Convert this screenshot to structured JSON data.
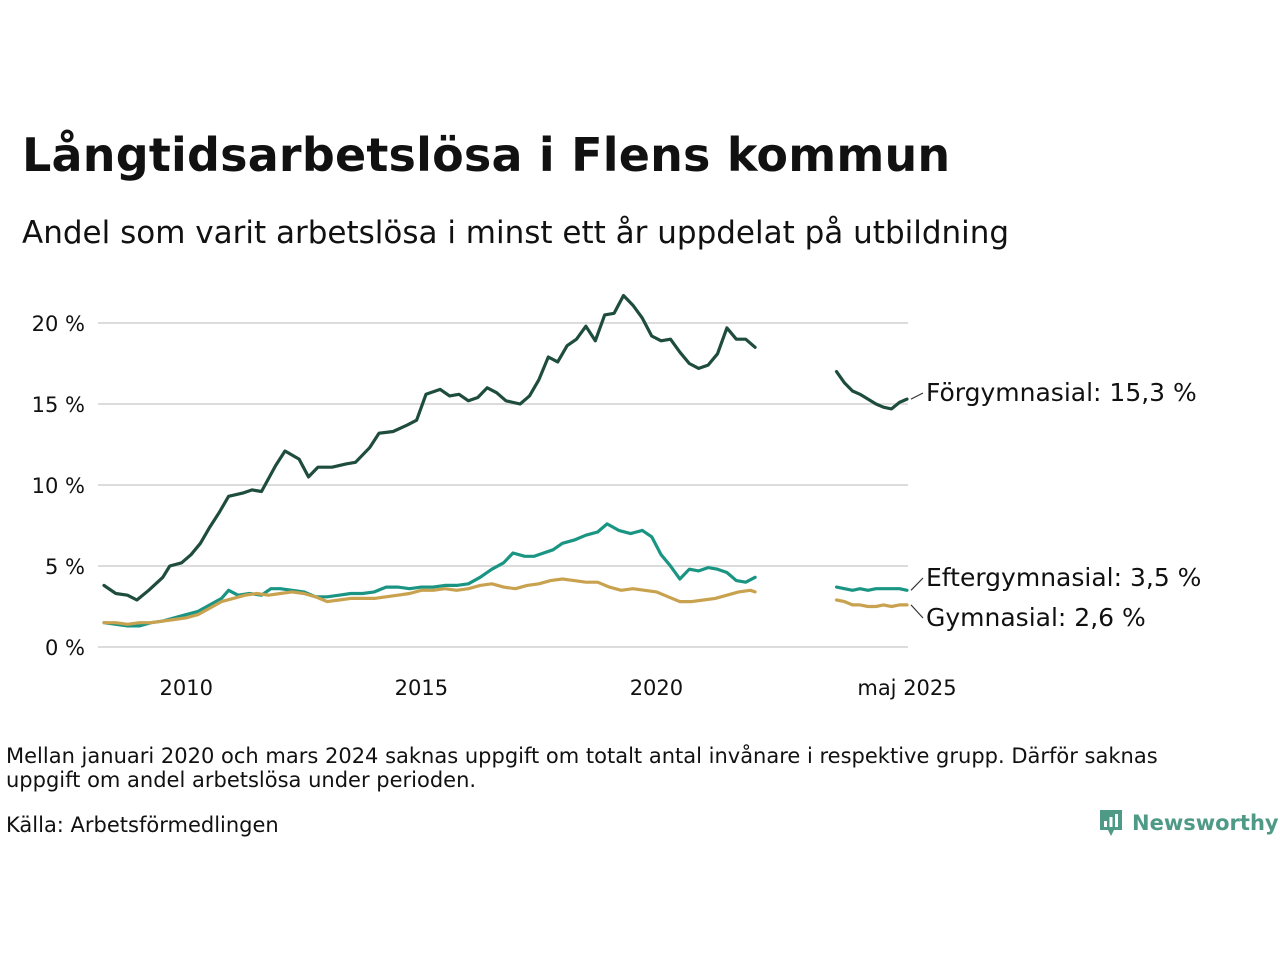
{
  "title": "Långtidsarbetslösa i Flens kommun",
  "subtitle": "Andel som varit arbetslösa i minst ett år uppdelat på utbildning",
  "note": "Mellan januari 2020 och mars 2024 saknas uppgift om totalt antal invånare i respektive grupp. Därför saknas uppgift om andel arbetslösa under perioden.",
  "source": "Källa: Arbetsförmedlingen",
  "brand": "Newsworthy",
  "chart_data": {
    "type": "line",
    "y_ticks": [
      0,
      5,
      10,
      15,
      20
    ],
    "y_tick_labels": [
      "0 %",
      "5 %",
      "10 %",
      "15 %",
      "20 %"
    ],
    "ylim": [
      0,
      22
    ],
    "x_ticks": [
      2010,
      2015,
      2020,
      2025.33
    ],
    "x_tick_labels": [
      "2010",
      "2015",
      "2020",
      "maj 2025"
    ],
    "xlim": [
      2008.25,
      2025.33
    ],
    "grid": true,
    "legend": "direct labels at right end of lines",
    "series": [
      {
        "name": "Förgymnasial",
        "end_label": "Förgymnasial: 15,3 %",
        "color": "#1f4d3d",
        "segments": [
          [
            [
              2008.25,
              3.8
            ],
            [
              2008.5,
              3.3
            ],
            [
              2008.75,
              3.2
            ],
            [
              2008.95,
              2.9
            ],
            [
              2009.2,
              3.5
            ],
            [
              2009.5,
              4.3
            ],
            [
              2009.65,
              5.0
            ],
            [
              2009.9,
              5.2
            ],
            [
              2010.1,
              5.7
            ],
            [
              2010.3,
              6.4
            ],
            [
              2010.5,
              7.4
            ],
            [
              2010.7,
              8.3
            ],
            [
              2010.9,
              9.3
            ],
            [
              2011.2,
              9.5
            ],
            [
              2011.4,
              9.7
            ],
            [
              2011.6,
              9.6
            ],
            [
              2011.9,
              11.2
            ],
            [
              2012.1,
              12.1
            ],
            [
              2012.4,
              11.6
            ],
            [
              2012.6,
              10.5
            ],
            [
              2012.8,
              11.1
            ],
            [
              2013.1,
              11.1
            ],
            [
              2013.4,
              11.3
            ],
            [
              2013.6,
              11.4
            ],
            [
              2013.9,
              12.3
            ],
            [
              2014.1,
              13.2
            ],
            [
              2014.4,
              13.3
            ],
            [
              2014.7,
              13.7
            ],
            [
              2014.9,
              14.0
            ],
            [
              2015.1,
              15.6
            ],
            [
              2015.4,
              15.9
            ],
            [
              2015.6,
              15.5
            ],
            [
              2015.8,
              15.6
            ],
            [
              2016.0,
              15.2
            ],
            [
              2016.2,
              15.4
            ],
            [
              2016.4,
              16.0
            ],
            [
              2016.6,
              15.7
            ],
            [
              2016.8,
              15.2
            ],
            [
              2017.1,
              15.0
            ],
            [
              2017.3,
              15.5
            ],
            [
              2017.5,
              16.5
            ],
            [
              2017.7,
              17.9
            ],
            [
              2017.9,
              17.6
            ],
            [
              2018.1,
              18.6
            ],
            [
              2018.3,
              19.0
            ],
            [
              2018.5,
              19.8
            ],
            [
              2018.7,
              18.9
            ],
            [
              2018.9,
              20.5
            ],
            [
              2019.1,
              20.6
            ],
            [
              2019.3,
              21.7
            ],
            [
              2019.5,
              21.1
            ],
            [
              2019.7,
              20.3
            ],
            [
              2019.9,
              19.2
            ],
            [
              2020.1,
              18.9
            ],
            [
              2020.3,
              19.0
            ],
            [
              2020.5,
              18.2
            ],
            [
              2020.7,
              17.5
            ],
            [
              2020.9,
              17.2
            ],
            [
              2021.1,
              17.4
            ],
            [
              2021.3,
              18.1
            ],
            [
              2021.5,
              19.7
            ],
            [
              2021.7,
              19.0
            ],
            [
              2021.9,
              19.0
            ],
            [
              2022.1,
              18.5
            ]
          ],
          [
            [
              2023.83,
              17.0
            ],
            [
              2024.0,
              16.3
            ],
            [
              2024.17,
              15.8
            ],
            [
              2024.33,
              15.6
            ],
            [
              2024.5,
              15.3
            ],
            [
              2024.67,
              15.0
            ],
            [
              2024.83,
              14.8
            ],
            [
              2025.0,
              14.7
            ],
            [
              2025.17,
              15.1
            ],
            [
              2025.33,
              15.3
            ]
          ]
        ]
      },
      {
        "name": "Eftergymnasial",
        "end_label": "Eftergymnasial:  3,5 %",
        "color": "#1a9583",
        "segments": [
          [
            [
              2008.25,
              1.5
            ],
            [
              2008.5,
              1.4
            ],
            [
              2008.75,
              1.3
            ],
            [
              2009.0,
              1.3
            ],
            [
              2009.25,
              1.5
            ],
            [
              2009.5,
              1.6
            ],
            [
              2009.75,
              1.8
            ],
            [
              2010.0,
              2.0
            ],
            [
              2010.25,
              2.2
            ],
            [
              2010.5,
              2.6
            ],
            [
              2010.75,
              3.0
            ],
            [
              2010.9,
              3.5
            ],
            [
              2011.1,
              3.2
            ],
            [
              2011.35,
              3.3
            ],
            [
              2011.6,
              3.2
            ],
            [
              2011.8,
              3.6
            ],
            [
              2012.0,
              3.6
            ],
            [
              2012.25,
              3.5
            ],
            [
              2012.5,
              3.4
            ],
            [
              2012.75,
              3.1
            ],
            [
              2013.0,
              3.1
            ],
            [
              2013.25,
              3.2
            ],
            [
              2013.5,
              3.3
            ],
            [
              2013.75,
              3.3
            ],
            [
              2014.0,
              3.4
            ],
            [
              2014.25,
              3.7
            ],
            [
              2014.5,
              3.7
            ],
            [
              2014.75,
              3.6
            ],
            [
              2015.0,
              3.7
            ],
            [
              2015.25,
              3.7
            ],
            [
              2015.5,
              3.8
            ],
            [
              2015.75,
              3.8
            ],
            [
              2016.0,
              3.9
            ],
            [
              2016.25,
              4.3
            ],
            [
              2016.5,
              4.8
            ],
            [
              2016.75,
              5.2
            ],
            [
              2016.95,
              5.8
            ],
            [
              2017.2,
              5.6
            ],
            [
              2017.4,
              5.6
            ],
            [
              2017.6,
              5.8
            ],
            [
              2017.8,
              6.0
            ],
            [
              2018.0,
              6.4
            ],
            [
              2018.25,
              6.6
            ],
            [
              2018.5,
              6.9
            ],
            [
              2018.75,
              7.1
            ],
            [
              2018.95,
              7.6
            ],
            [
              2019.2,
              7.2
            ],
            [
              2019.45,
              7.0
            ],
            [
              2019.7,
              7.2
            ],
            [
              2019.9,
              6.8
            ],
            [
              2020.1,
              5.7
            ],
            [
              2020.3,
              5.0
            ],
            [
              2020.5,
              4.2
            ],
            [
              2020.7,
              4.8
            ],
            [
              2020.9,
              4.7
            ],
            [
              2021.1,
              4.9
            ],
            [
              2021.3,
              4.8
            ],
            [
              2021.5,
              4.6
            ],
            [
              2021.7,
              4.1
            ],
            [
              2021.9,
              4.0
            ],
            [
              2022.1,
              4.3
            ]
          ],
          [
            [
              2023.83,
              3.7
            ],
            [
              2024.0,
              3.6
            ],
            [
              2024.17,
              3.5
            ],
            [
              2024.33,
              3.6
            ],
            [
              2024.5,
              3.5
            ],
            [
              2024.67,
              3.6
            ],
            [
              2024.83,
              3.6
            ],
            [
              2025.0,
              3.6
            ],
            [
              2025.17,
              3.6
            ],
            [
              2025.33,
              3.5
            ]
          ]
        ]
      },
      {
        "name": "Gymnasial",
        "end_label": "Gymnasial:  2,6 %",
        "color": "#c9a24f",
        "segments": [
          [
            [
              2008.25,
              1.5
            ],
            [
              2008.5,
              1.5
            ],
            [
              2008.75,
              1.4
            ],
            [
              2009.0,
              1.5
            ],
            [
              2009.25,
              1.5
            ],
            [
              2009.5,
              1.6
            ],
            [
              2009.75,
              1.7
            ],
            [
              2010.0,
              1.8
            ],
            [
              2010.25,
              2.0
            ],
            [
              2010.5,
              2.4
            ],
            [
              2010.75,
              2.8
            ],
            [
              2011.0,
              3.0
            ],
            [
              2011.25,
              3.2
            ],
            [
              2011.5,
              3.3
            ],
            [
              2011.75,
              3.2
            ],
            [
              2012.0,
              3.3
            ],
            [
              2012.25,
              3.4
            ],
            [
              2012.5,
              3.3
            ],
            [
              2012.75,
              3.1
            ],
            [
              2013.0,
              2.8
            ],
            [
              2013.25,
              2.9
            ],
            [
              2013.5,
              3.0
            ],
            [
              2013.75,
              3.0
            ],
            [
              2014.0,
              3.0
            ],
            [
              2014.25,
              3.1
            ],
            [
              2014.5,
              3.2
            ],
            [
              2014.75,
              3.3
            ],
            [
              2015.0,
              3.5
            ],
            [
              2015.25,
              3.5
            ],
            [
              2015.5,
              3.6
            ],
            [
              2015.75,
              3.5
            ],
            [
              2016.0,
              3.6
            ],
            [
              2016.25,
              3.8
            ],
            [
              2016.5,
              3.9
            ],
            [
              2016.75,
              3.7
            ],
            [
              2017.0,
              3.6
            ],
            [
              2017.25,
              3.8
            ],
            [
              2017.5,
              3.9
            ],
            [
              2017.75,
              4.1
            ],
            [
              2018.0,
              4.2
            ],
            [
              2018.25,
              4.1
            ],
            [
              2018.5,
              4.0
            ],
            [
              2018.75,
              4.0
            ],
            [
              2019.0,
              3.7
            ],
            [
              2019.25,
              3.5
            ],
            [
              2019.5,
              3.6
            ],
            [
              2019.75,
              3.5
            ],
            [
              2020.0,
              3.4
            ],
            [
              2020.25,
              3.1
            ],
            [
              2020.5,
              2.8
            ],
            [
              2020.75,
              2.8
            ],
            [
              2021.0,
              2.9
            ],
            [
              2021.25,
              3.0
            ],
            [
              2021.5,
              3.2
            ],
            [
              2021.75,
              3.4
            ],
            [
              2022.0,
              3.5
            ],
            [
              2022.1,
              3.4
            ]
          ],
          [
            [
              2023.83,
              2.9
            ],
            [
              2024.0,
              2.8
            ],
            [
              2024.17,
              2.6
            ],
            [
              2024.33,
              2.6
            ],
            [
              2024.5,
              2.5
            ],
            [
              2024.67,
              2.5
            ],
            [
              2024.83,
              2.6
            ],
            [
              2025.0,
              2.5
            ],
            [
              2025.17,
              2.6
            ],
            [
              2025.33,
              2.6
            ]
          ]
        ]
      }
    ]
  }
}
